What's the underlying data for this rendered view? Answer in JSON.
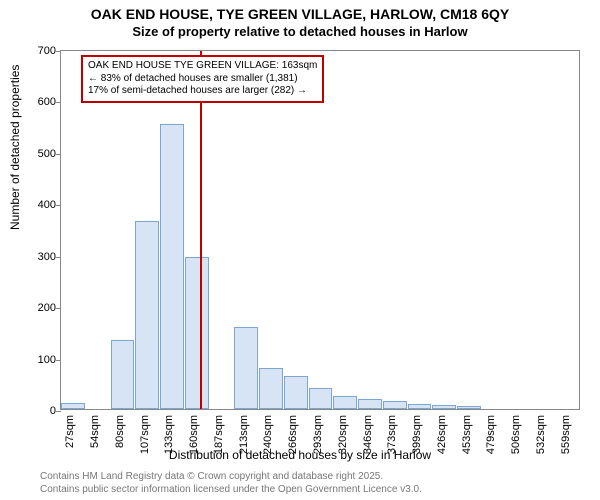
{
  "title": {
    "main": "OAK END HOUSE, TYE GREEN VILLAGE, HARLOW, CM18 6QY",
    "sub": "Size of property relative to detached houses in Harlow"
  },
  "chart": {
    "type": "histogram",
    "ylabel": "Number of detached properties",
    "xlabel": "Distribution of detached houses by size in Harlow",
    "ylim": [
      0,
      700
    ],
    "ytick_step": 100,
    "yticks": [
      0,
      100,
      200,
      300,
      400,
      500,
      600,
      700
    ],
    "xticks": [
      "27sqm",
      "54sqm",
      "80sqm",
      "107sqm",
      "133sqm",
      "160sqm",
      "187sqm",
      "213sqm",
      "240sqm",
      "266sqm",
      "293sqm",
      "320sqm",
      "346sqm",
      "373sqm",
      "399sqm",
      "426sqm",
      "453sqm",
      "479sqm",
      "506sqm",
      "532sqm",
      "559sqm"
    ],
    "bars": [
      12,
      0,
      135,
      365,
      555,
      295,
      0,
      160,
      80,
      65,
      40,
      25,
      20,
      15,
      10,
      8,
      5,
      0,
      0,
      0,
      0
    ],
    "bar_color": "#d6e4f5",
    "bar_border": "#7fa6d1",
    "background_color": "#ffffff",
    "axis_color": "#888888",
    "ref_line": {
      "value": 163,
      "color": "#c00000"
    },
    "annotation": {
      "lines": [
        "OAK END HOUSE TYE GREEN VILLAGE: 163sqm",
        "← 83% of detached houses are smaller (1,381)",
        "17% of semi-detached houses are larger (282) →"
      ],
      "border_color": "#c00000",
      "text_color": "#000000",
      "fontsize": 10
    },
    "title_fontsize": 14,
    "label_fontsize": 12,
    "tick_fontsize": 11
  },
  "footer": {
    "line1": "Contains HM Land Registry data © Crown copyright and database right 2025.",
    "line2": "Contains public sector information licensed under the Open Government Licence v3.0."
  }
}
